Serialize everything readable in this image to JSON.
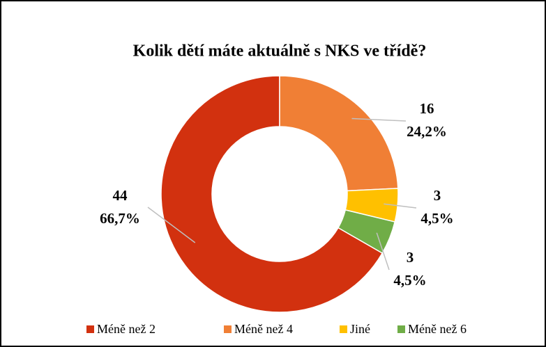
{
  "chart_data": {
    "type": "donut",
    "title": "Kolik dětí máte aktuálně s NKS ve třídě?",
    "categories": [
      "Méně než 2",
      "Méně než 4",
      "Jiné",
      "Méně než 6"
    ],
    "values": [
      44,
      16,
      3,
      3
    ],
    "percent_labels": [
      "66,7%",
      "24,2%",
      "4,5%",
      "4,5%"
    ],
    "colors": [
      "#d2310f",
      "#f07f35",
      "#ffc000",
      "#70ad47"
    ],
    "start_angle": 120,
    "legend": "bottom"
  }
}
